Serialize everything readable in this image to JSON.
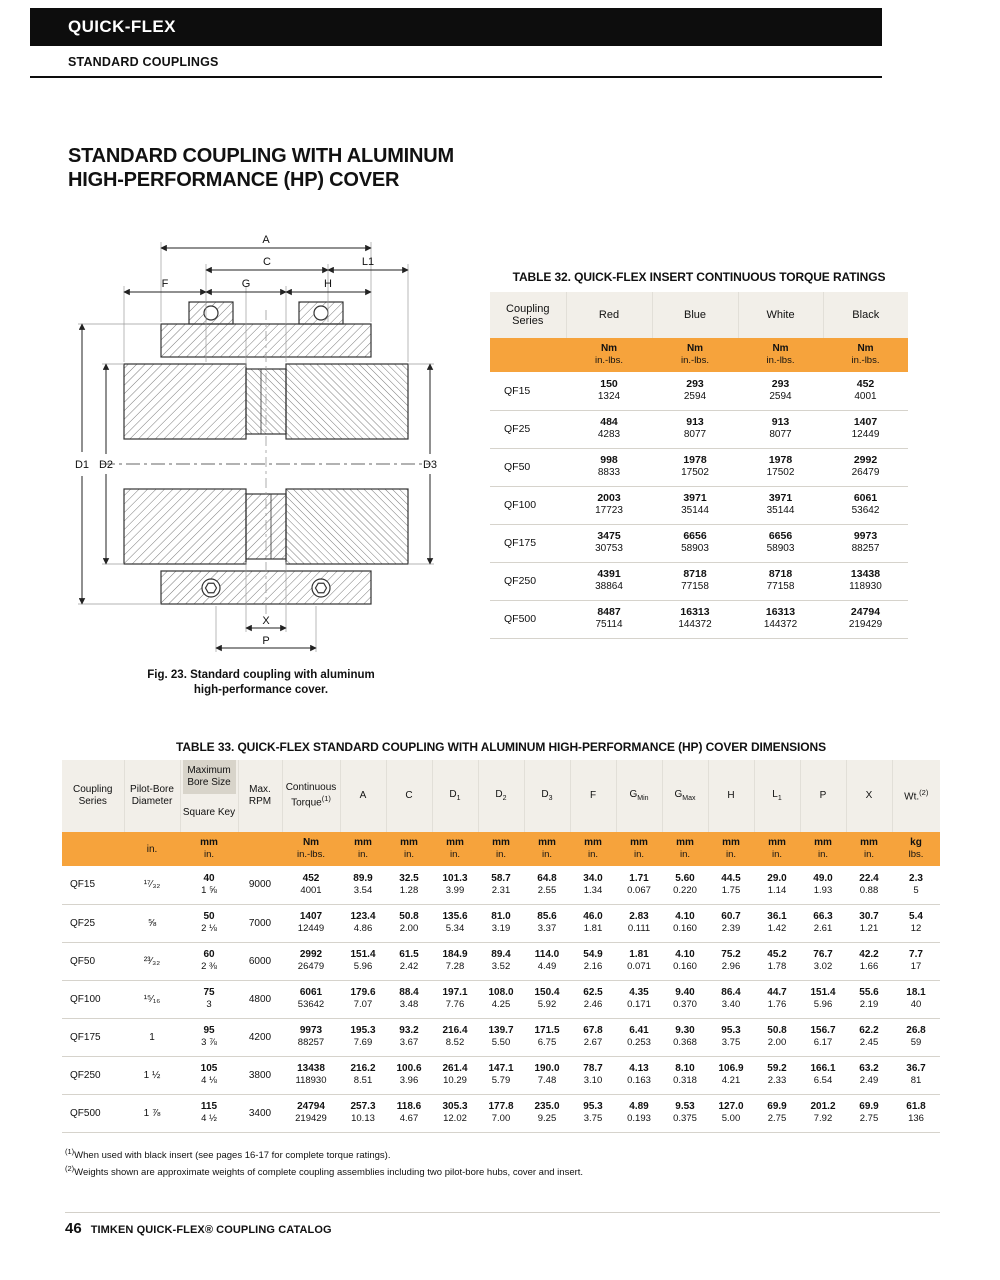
{
  "header": {
    "brand": "QUICK-FLEX",
    "subtitle": "STANDARD COUPLINGS"
  },
  "title": {
    "line1": "STANDARD COUPLING WITH ALUMINUM",
    "line2": "HIGH-PERFORMANCE (HP) COVER"
  },
  "figure": {
    "caption_line1": "Fig. 23. Standard coupling with aluminum",
    "caption_line2": "high-performance cover.",
    "labels": {
      "A": "A",
      "C": "C",
      "L1": "L1",
      "F": "F",
      "G": "G",
      "H": "H",
      "D1": "D1",
      "D2": "D2",
      "D3": "D3",
      "X": "X",
      "P": "P"
    }
  },
  "table32": {
    "title": "TABLE 32. QUICK-FLEX INSERT CONTINUOUS TORQUE RATINGS",
    "columns": [
      "Coupling Series",
      "Red",
      "Blue",
      "White",
      "Black"
    ],
    "units": {
      "top": "Nm",
      "bottom": "in.-lbs."
    },
    "rows": [
      {
        "series": "QF15",
        "cells": [
          [
            "150",
            "1324"
          ],
          [
            "293",
            "2594"
          ],
          [
            "293",
            "2594"
          ],
          [
            "452",
            "4001"
          ]
        ]
      },
      {
        "series": "QF25",
        "cells": [
          [
            "484",
            "4283"
          ],
          [
            "913",
            "8077"
          ],
          [
            "913",
            "8077"
          ],
          [
            "1407",
            "12449"
          ]
        ]
      },
      {
        "series": "QF50",
        "cells": [
          [
            "998",
            "8833"
          ],
          [
            "1978",
            "17502"
          ],
          [
            "1978",
            "17502"
          ],
          [
            "2992",
            "26479"
          ]
        ]
      },
      {
        "series": "QF100",
        "cells": [
          [
            "2003",
            "17723"
          ],
          [
            "3971",
            "35144"
          ],
          [
            "3971",
            "35144"
          ],
          [
            "6061",
            "53642"
          ]
        ]
      },
      {
        "series": "QF175",
        "cells": [
          [
            "3475",
            "30753"
          ],
          [
            "6656",
            "58903"
          ],
          [
            "6656",
            "58903"
          ],
          [
            "9973",
            "88257"
          ]
        ]
      },
      {
        "series": "QF250",
        "cells": [
          [
            "4391",
            "38864"
          ],
          [
            "8718",
            "77158"
          ],
          [
            "8718",
            "77158"
          ],
          [
            "13438",
            "118930"
          ]
        ]
      },
      {
        "series": "QF500",
        "cells": [
          [
            "8487",
            "75114"
          ],
          [
            "16313",
            "144372"
          ],
          [
            "16313",
            "144372"
          ],
          [
            "24794",
            "219429"
          ]
        ]
      }
    ]
  },
  "table33": {
    "title": "TABLE 33. QUICK-FLEX STANDARD COUPLING WITH ALUMINUM HIGH-PERFORMANCE (HP) COVER DIMENSIONS",
    "head": {
      "series": "Coupling Series",
      "pilot": "Pilot-Bore Diameter",
      "max_bore": "Maximum Bore Size",
      "square_key": "Square Key",
      "rpm": "Max. RPM",
      "torque": "Continuous Torque",
      "torque_sup": "(1)",
      "dims": [
        {
          "b": "A",
          "s": ""
        },
        {
          "b": "C",
          "s": ""
        },
        {
          "b": "D",
          "s": "1"
        },
        {
          "b": "D",
          "s": "2"
        },
        {
          "b": "D",
          "s": "3"
        },
        {
          "b": "F",
          "s": ""
        },
        {
          "b": "G",
          "s": "Min"
        },
        {
          "b": "G",
          "s": "Max"
        },
        {
          "b": "H",
          "s": ""
        },
        {
          "b": "L",
          "s": "1"
        },
        {
          "b": "P",
          "s": ""
        },
        {
          "b": "X",
          "s": ""
        }
      ],
      "wt": "Wt.",
      "wt_sup": "(2)"
    },
    "units": {
      "pilot": "in.",
      "bore": [
        "mm",
        "in."
      ],
      "torque": [
        "Nm",
        "in.-lbs."
      ],
      "dim": [
        "mm",
        "in."
      ],
      "wt": [
        "kg",
        "lbs."
      ]
    },
    "rows": [
      {
        "series": "QF15",
        "pilot": "¹⁷⁄₃₂",
        "bore": [
          "40",
          "1 ⅝"
        ],
        "rpm": "9000",
        "torque": [
          "452",
          "4001"
        ],
        "dims": [
          [
            "89.9",
            "3.54"
          ],
          [
            "32.5",
            "1.28"
          ],
          [
            "101.3",
            "3.99"
          ],
          [
            "58.7",
            "2.31"
          ],
          [
            "64.8",
            "2.55"
          ],
          [
            "34.0",
            "1.34"
          ],
          [
            "1.71",
            "0.067"
          ],
          [
            "5.60",
            "0.220"
          ],
          [
            "44.5",
            "1.75"
          ],
          [
            "29.0",
            "1.14"
          ],
          [
            "49.0",
            "1.93"
          ],
          [
            "22.4",
            "0.88"
          ]
        ],
        "wt": [
          "2.3",
          "5"
        ]
      },
      {
        "series": "QF25",
        "pilot": "⅝",
        "bore": [
          "50",
          "2 ⅛"
        ],
        "rpm": "7000",
        "torque": [
          "1407",
          "12449"
        ],
        "dims": [
          [
            "123.4",
            "4.86"
          ],
          [
            "50.8",
            "2.00"
          ],
          [
            "135.6",
            "5.34"
          ],
          [
            "81.0",
            "3.19"
          ],
          [
            "85.6",
            "3.37"
          ],
          [
            "46.0",
            "1.81"
          ],
          [
            "2.83",
            "0.111"
          ],
          [
            "4.10",
            "0.160"
          ],
          [
            "60.7",
            "2.39"
          ],
          [
            "36.1",
            "1.42"
          ],
          [
            "66.3",
            "2.61"
          ],
          [
            "30.7",
            "1.21"
          ]
        ],
        "wt": [
          "5.4",
          "12"
        ]
      },
      {
        "series": "QF50",
        "pilot": "²³⁄₃₂",
        "bore": [
          "60",
          "2 ⅜"
        ],
        "rpm": "6000",
        "torque": [
          "2992",
          "26479"
        ],
        "dims": [
          [
            "151.4",
            "5.96"
          ],
          [
            "61.5",
            "2.42"
          ],
          [
            "184.9",
            "7.28"
          ],
          [
            "89.4",
            "3.52"
          ],
          [
            "114.0",
            "4.49"
          ],
          [
            "54.9",
            "2.16"
          ],
          [
            "1.81",
            "0.071"
          ],
          [
            "4.10",
            "0.160"
          ],
          [
            "75.2",
            "2.96"
          ],
          [
            "45.2",
            "1.78"
          ],
          [
            "76.7",
            "3.02"
          ],
          [
            "42.2",
            "1.66"
          ]
        ],
        "wt": [
          "7.7",
          "17"
        ]
      },
      {
        "series": "QF100",
        "pilot": "¹⁵⁄₁₆",
        "bore": [
          "75",
          "3"
        ],
        "rpm": "4800",
        "torque": [
          "6061",
          "53642"
        ],
        "dims": [
          [
            "179.6",
            "7.07"
          ],
          [
            "88.4",
            "3.48"
          ],
          [
            "197.1",
            "7.76"
          ],
          [
            "108.0",
            "4.25"
          ],
          [
            "150.4",
            "5.92"
          ],
          [
            "62.5",
            "2.46"
          ],
          [
            "4.35",
            "0.171"
          ],
          [
            "9.40",
            "0.370"
          ],
          [
            "86.4",
            "3.40"
          ],
          [
            "44.7",
            "1.76"
          ],
          [
            "151.4",
            "5.96"
          ],
          [
            "55.6",
            "2.19"
          ]
        ],
        "wt": [
          "18.1",
          "40"
        ]
      },
      {
        "series": "QF175",
        "pilot": "1",
        "bore": [
          "95",
          "3 ⅞"
        ],
        "rpm": "4200",
        "torque": [
          "9973",
          "88257"
        ],
        "dims": [
          [
            "195.3",
            "7.69"
          ],
          [
            "93.2",
            "3.67"
          ],
          [
            "216.4",
            "8.52"
          ],
          [
            "139.7",
            "5.50"
          ],
          [
            "171.5",
            "6.75"
          ],
          [
            "67.8",
            "2.67"
          ],
          [
            "6.41",
            "0.253"
          ],
          [
            "9.30",
            "0.368"
          ],
          [
            "95.3",
            "3.75"
          ],
          [
            "50.8",
            "2.00"
          ],
          [
            "156.7",
            "6.17"
          ],
          [
            "62.2",
            "2.45"
          ]
        ],
        "wt": [
          "26.8",
          "59"
        ]
      },
      {
        "series": "QF250",
        "pilot": "1 ½",
        "bore": [
          "105",
          "4 ⅛"
        ],
        "rpm": "3800",
        "torque": [
          "13438",
          "118930"
        ],
        "dims": [
          [
            "216.2",
            "8.51"
          ],
          [
            "100.6",
            "3.96"
          ],
          [
            "261.4",
            "10.29"
          ],
          [
            "147.1",
            "5.79"
          ],
          [
            "190.0",
            "7.48"
          ],
          [
            "78.7",
            "3.10"
          ],
          [
            "4.13",
            "0.163"
          ],
          [
            "8.10",
            "0.318"
          ],
          [
            "106.9",
            "4.21"
          ],
          [
            "59.2",
            "2.33"
          ],
          [
            "166.1",
            "6.54"
          ],
          [
            "63.2",
            "2.49"
          ]
        ],
        "wt": [
          "36.7",
          "81"
        ]
      },
      {
        "series": "QF500",
        "pilot": "1 ⅞",
        "bore": [
          "115",
          "4 ½"
        ],
        "rpm": "3400",
        "torque": [
          "24794",
          "219429"
        ],
        "dims": [
          [
            "257.3",
            "10.13"
          ],
          [
            "118.6",
            "4.67"
          ],
          [
            "305.3",
            "12.02"
          ],
          [
            "177.8",
            "7.00"
          ],
          [
            "235.0",
            "9.25"
          ],
          [
            "95.3",
            "3.75"
          ],
          [
            "4.89",
            "0.193"
          ],
          [
            "9.53",
            "0.375"
          ],
          [
            "127.0",
            "5.00"
          ],
          [
            "69.9",
            "2.75"
          ],
          [
            "201.2",
            "7.92"
          ],
          [
            "69.9",
            "2.75"
          ]
        ],
        "wt": [
          "61.8",
          "136"
        ]
      }
    ]
  },
  "footnotes": [
    {
      "sup": "(1)",
      "text": "When used with black insert (see pages 16-17 for complete torque ratings)."
    },
    {
      "sup": "(2)",
      "text": "Weights shown are approximate weights of complete coupling assemblies including two pilot-bore hubs, cover and insert."
    }
  ],
  "footer": {
    "page": "46",
    "text": "TIMKEN QUICK-FLEX® COUPLING CATALOG"
  }
}
